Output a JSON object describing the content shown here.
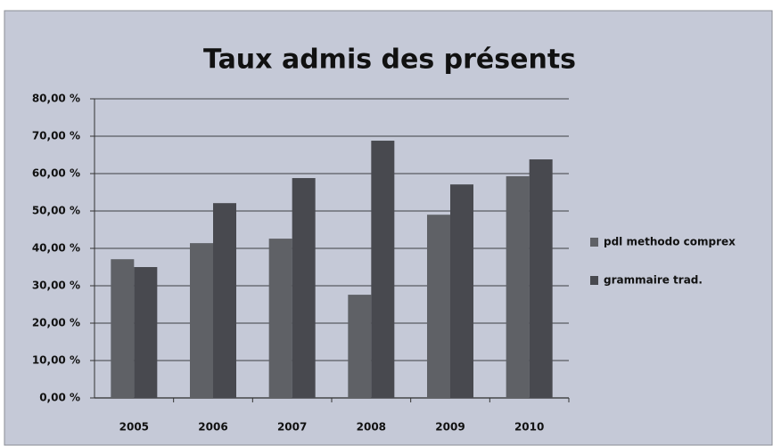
{
  "chart_data": {
    "type": "bar",
    "title": "Taux admis des présents",
    "categories": [
      "2005",
      "2006",
      "2007",
      "2008",
      "2009",
      "2010"
    ],
    "series": [
      {
        "name": "pdl methodo comprex",
        "color": "#5f6166",
        "values": [
          37.1,
          41.4,
          42.6,
          27.6,
          49.0,
          59.3
        ]
      },
      {
        "name": "grammaire trad.",
        "color": "#48494f",
        "values": [
          35.0,
          52.1,
          58.8,
          68.8,
          57.1,
          63.8
        ]
      }
    ],
    "ylim": [
      0,
      80
    ],
    "yticks": [
      {
        "value": 0,
        "label": "0,00 %"
      },
      {
        "value": 10,
        "label": "10,00 %"
      },
      {
        "value": 20,
        "label": "20,00 %"
      },
      {
        "value": 30,
        "label": "30,00 %"
      },
      {
        "value": 40,
        "label": "40,00 %"
      },
      {
        "value": 50,
        "label": "50,00 %"
      },
      {
        "value": 60,
        "label": "60,00 %"
      },
      {
        "value": 70,
        "label": "70,00 %"
      },
      {
        "value": 80,
        "label": "80,00 %"
      }
    ],
    "grid": true,
    "legend": "right"
  }
}
